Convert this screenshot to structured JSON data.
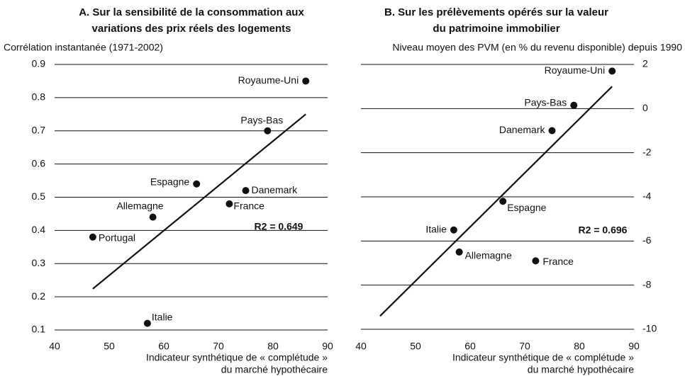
{
  "chart_data": [
    {
      "type": "scatter",
      "title": [
        "A. Sur la sensibilité de la consommation aux",
        "variations des prix réels des logements"
      ],
      "y_label": "Corrélation instantanée (1971-2002)",
      "x_label": [
        "Indicateur synthétique de « complétude »",
        "du marché hypothécaire"
      ],
      "xlim": [
        40,
        90
      ],
      "xticks": [
        40,
        50,
        60,
        70,
        80,
        90
      ],
      "ylim": [
        0.1,
        0.9
      ],
      "yticks": [
        0.1,
        0.2,
        0.3,
        0.4,
        0.5,
        0.6,
        0.7,
        0.8,
        0.9
      ],
      "y_axis_side": "left",
      "grid": true,
      "color": "#111",
      "points": [
        {
          "label": "Royaume-Uni",
          "x": 86,
          "y": 0.85
        },
        {
          "label": "Pays-Bas",
          "x": 79,
          "y": 0.7
        },
        {
          "label": "Espagne",
          "x": 66,
          "y": 0.54
        },
        {
          "label": "Danemark",
          "x": 75,
          "y": 0.52
        },
        {
          "label": "France",
          "x": 72,
          "y": 0.48
        },
        {
          "label": "Allemagne",
          "x": 58,
          "y": 0.44
        },
        {
          "label": "Portugal",
          "x": 47,
          "y": 0.38
        },
        {
          "label": "Italie",
          "x": 57,
          "y": 0.12
        }
      ],
      "trend_line": {
        "x": [
          47,
          86
        ],
        "y": [
          0.224,
          0.75
        ]
      },
      "annotation": "R2 = 0.649"
    },
    {
      "type": "scatter",
      "title": [
        "B. Sur les prélèvements opérés sur la valeur",
        "du patrimoine immobilier"
      ],
      "y_label": "Niveau moyen des PVM (en % du revenu disponible) depuis 1990",
      "x_label": [
        "Indicateur synthétique de « complétude »",
        "du marché hypothécaire"
      ],
      "xlim": [
        40,
        90
      ],
      "xticks": [
        40,
        50,
        60,
        70,
        80,
        90
      ],
      "ylim": [
        -10,
        2
      ],
      "yticks": [
        -10,
        -8,
        -6,
        -4,
        -2,
        0,
        2
      ],
      "y_axis_side": "right",
      "grid": true,
      "color": "#111",
      "points": [
        {
          "label": "Royaume-Uni",
          "x": 86,
          "y": 1.7
        },
        {
          "label": "Pays-Bas",
          "x": 79,
          "y": 0.15
        },
        {
          "label": "Danemark",
          "x": 75,
          "y": -1
        },
        {
          "label": "Espagne",
          "x": 66,
          "y": -4.2
        },
        {
          "label": "Italie",
          "x": 57,
          "y": -5.5
        },
        {
          "label": "Allemagne",
          "x": 58,
          "y": -6.5
        },
        {
          "label": "France",
          "x": 72,
          "y": -6.9
        }
      ],
      "trend_line": {
        "x": [
          43.5,
          86
        ],
        "y": [
          -9.4,
          1
        ]
      },
      "annotation": "R2 = 0.696"
    }
  ]
}
